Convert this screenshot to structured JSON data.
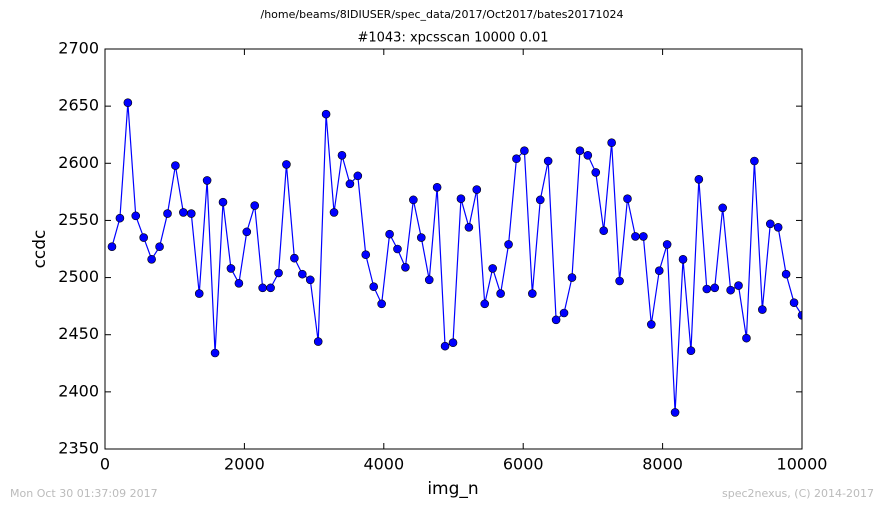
{
  "chart_data": {
    "type": "line",
    "suptitle": "/home/beams/8IDIUSER/spec_data/2017/Oct2017/bates20171024",
    "title": "#1043: xpcsscan 10000 0.01",
    "x_label": "img_n",
    "y_label": "ccdc",
    "footer_left": "Mon Oct 30 01:37:09 2017",
    "footer_right": "spec2nexus, (C) 2014-2017",
    "color": "#0000ff",
    "marker": true,
    "x": [
      100,
      214,
      328,
      441,
      555,
      669,
      783,
      897,
      1010,
      1124,
      1238,
      1352,
      1465,
      1579,
      1693,
      1807,
      1921,
      2034,
      2148,
      2262,
      2376,
      2490,
      2603,
      2717,
      2831,
      2945,
      3059,
      3172,
      3286,
      3400,
      3514,
      3627,
      3741,
      3855,
      3969,
      4083,
      4196,
      4310,
      4424,
      4538,
      4652,
      4765,
      4879,
      4993,
      5107,
      5221,
      5334,
      5448,
      5562,
      5676,
      5790,
      5903,
      6017,
      6131,
      6245,
      6358,
      6472,
      6586,
      6700,
      6814,
      6927,
      7041,
      7155,
      7269,
      7383,
      7496,
      7610,
      7724,
      7838,
      7952,
      8065,
      8179,
      8293,
      8407,
      8520,
      8634,
      8748,
      8862,
      8976,
      9089,
      9203,
      9317,
      9431,
      9545,
      9658,
      9772,
      9886,
      10000
    ],
    "values": [
      2527,
      2552,
      2653,
      2554,
      2535,
      2516,
      2527,
      2556,
      2598,
      2557,
      2556,
      2486,
      2585,
      2434,
      2566,
      2508,
      2495,
      2540,
      2563,
      2491,
      2491,
      2504,
      2599,
      2517,
      2503,
      2498,
      2444,
      2643,
      2557,
      2607,
      2582,
      2589,
      2520,
      2492,
      2477,
      2538,
      2525,
      2509,
      2568,
      2535,
      2498,
      2579,
      2440,
      2443,
      2569,
      2544,
      2577,
      2477,
      2508,
      2486,
      2529,
      2604,
      2611,
      2486,
      2568,
      2602,
      2463,
      2469,
      2500,
      2611,
      2607,
      2592,
      2541,
      2618,
      2497,
      2569,
      2536,
      2536,
      2459,
      2506,
      2529,
      2382,
      2516,
      2436,
      2586,
      2490,
      2491,
      2561,
      2489,
      2493,
      2447,
      2602,
      2472,
      2547,
      2544,
      2503,
      2478,
      2467
    ],
    "xlim": [
      0,
      10000
    ],
    "xticks": [
      0,
      2000,
      4000,
      6000,
      8000,
      10000
    ],
    "ylim": [
      2350,
      2700
    ],
    "yticks": [
      2350,
      2400,
      2450,
      2500,
      2550,
      2600,
      2650,
      2700
    ]
  }
}
